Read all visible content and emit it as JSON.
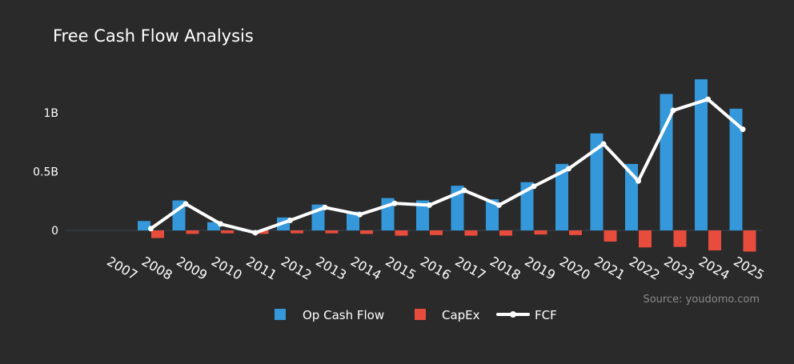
{
  "chart_data": {
    "type": "bar",
    "title": "Free Cash Flow Analysis",
    "categories": [
      "2007",
      "2008",
      "2009",
      "2010",
      "2011",
      "2012",
      "2013",
      "2014",
      "2015",
      "2016",
      "2017",
      "2018",
      "2019",
      "2020",
      "2021",
      "2022",
      "2023",
      "2024",
      "2025"
    ],
    "y_tick_labels": [
      {
        "value": 0,
        "label": "0"
      },
      {
        "value": 500000000,
        "label": "0.5B"
      },
      {
        "value": 1000000000,
        "label": "1B"
      }
    ],
    "ylim": [
      -250000000,
      1400000000
    ],
    "grid": false,
    "legend_position": "bottom-center",
    "source_text": "Source: youdomo.com",
    "series": [
      {
        "name": "Op Cash Flow",
        "kind": "bar",
        "color": "#3498db",
        "values": [
          null,
          80000000,
          255000000,
          70000000,
          -10000000,
          110000000,
          220000000,
          160000000,
          275000000,
          255000000,
          380000000,
          265000000,
          410000000,
          565000000,
          825000000,
          565000000,
          1160000000,
          1285000000,
          1035000000
        ]
      },
      {
        "name": "CapEx",
        "kind": "bar",
        "color": "#e74c3c",
        "values": [
          null,
          -65000000,
          -30000000,
          -25000000,
          -30000000,
          -25000000,
          -25000000,
          -30000000,
          -45000000,
          -40000000,
          -45000000,
          -45000000,
          -35000000,
          -40000000,
          -95000000,
          -145000000,
          -140000000,
          -170000000,
          -180000000
        ]
      },
      {
        "name": "FCF",
        "kind": "line",
        "color": "#ffffff",
        "values": [
          null,
          15000000,
          225000000,
          55000000,
          -20000000,
          85000000,
          195000000,
          135000000,
          230000000,
          215000000,
          340000000,
          215000000,
          375000000,
          525000000,
          735000000,
          420000000,
          1020000000,
          1115000000,
          860000000
        ]
      }
    ]
  }
}
